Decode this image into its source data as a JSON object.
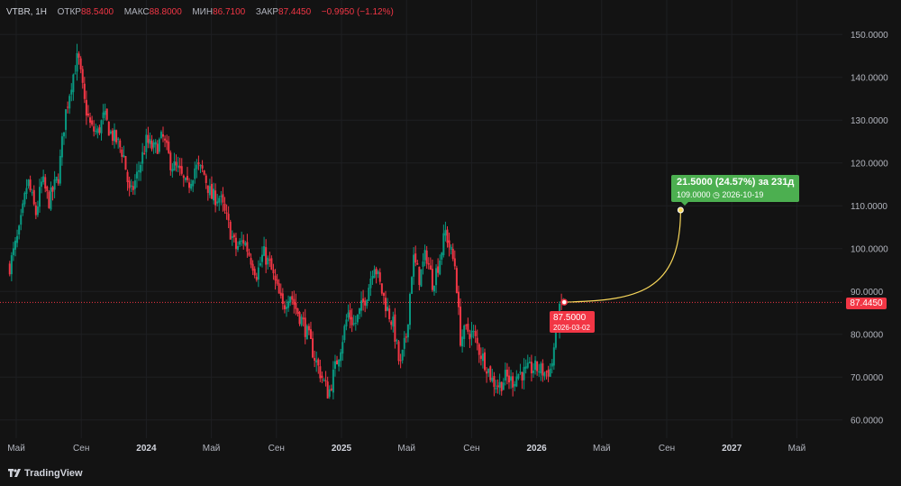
{
  "legend": {
    "symbol": "VTBR, 1H",
    "open_label": "ОТКР",
    "open": "88.5400",
    "high_label": "МАКС",
    "high": "88.8000",
    "low_label": "МИН",
    "low": "86.7100",
    "close_label": "ЗАКР",
    "close": "87.4450",
    "change": "−0.9950 (−1.12%)"
  },
  "current_price_tag": "87.4450",
  "projection": {
    "from_price": "87.5000",
    "from_date": "2026-03-02",
    "main": "21.5000 (24.57%) за 231д",
    "sub": "109.0000 ◷ 2026-10-19",
    "to_price": 109.0
  },
  "branding": {
    "logo_text": "TradingView"
  },
  "colors": {
    "up": "#089981",
    "down": "#f23645",
    "projection": "#4caf50",
    "curve": "#f7d65a",
    "background": "#131313"
  },
  "chart_data": {
    "type": "candlestick",
    "y_axis_ticks": [
      "150.0000",
      "140.0000",
      "130.0000",
      "120.0000",
      "110.0000",
      "100.0000",
      "90.0000",
      "80.0000",
      "70.0000",
      "60.0000"
    ],
    "ylim": [
      57,
      153
    ],
    "x_axis_ticks": [
      {
        "label": "Май",
        "t": 0.0
      },
      {
        "label": "Сен",
        "t": 4.0
      },
      {
        "label": "2024",
        "t": 8.0
      },
      {
        "label": "Май",
        "t": 12.0
      },
      {
        "label": "Сен",
        "t": 16.0
      },
      {
        "label": "2025",
        "t": 20.0
      },
      {
        "label": "Май",
        "t": 24.0
      },
      {
        "label": "Сен",
        "t": 28.0
      },
      {
        "label": "2026",
        "t": 32.0
      },
      {
        "label": "Май",
        "t": 36.0
      },
      {
        "label": "Сен",
        "t": 40.0
      },
      {
        "label": "2027",
        "t": 44.0
      },
      {
        "label": "Май",
        "t": 48.0
      }
    ],
    "bold_ticks": [
      "2024",
      "2025",
      "2026",
      "2027"
    ],
    "current_price": 87.445,
    "price_path": [
      [
        -0.4,
        96
      ],
      [
        0.2,
        104
      ],
      [
        0.7,
        116
      ],
      [
        1.2,
        108
      ],
      [
        1.6,
        116
      ],
      [
        2.0,
        111
      ],
      [
        2.6,
        117
      ],
      [
        3.0,
        131
      ],
      [
        3.4,
        139
      ],
      [
        3.8,
        145
      ],
      [
        4.2,
        134
      ],
      [
        4.6,
        128
      ],
      [
        5.0,
        127
      ],
      [
        5.4,
        131
      ],
      [
        5.8,
        127
      ],
      [
        6.2,
        125
      ],
      [
        6.6,
        122
      ],
      [
        7.0,
        112
      ],
      [
        7.5,
        118
      ],
      [
        8.0,
        125
      ],
      [
        8.5,
        123
      ],
      [
        9.0,
        126
      ],
      [
        9.5,
        120
      ],
      [
        10.0,
        118
      ],
      [
        10.5,
        114
      ],
      [
        11.0,
        119
      ],
      [
        11.5,
        118
      ],
      [
        12.0,
        112
      ],
      [
        12.5,
        112
      ],
      [
        13.0,
        106
      ],
      [
        13.5,
        100
      ],
      [
        14.0,
        102
      ],
      [
        14.4,
        98
      ],
      [
        14.8,
        94
      ],
      [
        15.2,
        99
      ],
      [
        15.6,
        96
      ],
      [
        16.0,
        91
      ],
      [
        16.4,
        86
      ],
      [
        16.8,
        90
      ],
      [
        17.2,
        86
      ],
      [
        17.6,
        83
      ],
      [
        18.0,
        79
      ],
      [
        18.4,
        74
      ],
      [
        18.8,
        70
      ],
      [
        19.2,
        66
      ],
      [
        19.6,
        72
      ],
      [
        20.0,
        78
      ],
      [
        20.4,
        85
      ],
      [
        20.8,
        82
      ],
      [
        21.2,
        86
      ],
      [
        21.6,
        90
      ],
      [
        22.0,
        97
      ],
      [
        22.4,
        91
      ],
      [
        22.8,
        86
      ],
      [
        23.2,
        82
      ],
      [
        23.6,
        72
      ],
      [
        24.0,
        80
      ],
      [
        24.4,
        98
      ],
      [
        24.8,
        93
      ],
      [
        25.2,
        99
      ],
      [
        25.6,
        92
      ],
      [
        26.0,
        97
      ],
      [
        26.4,
        104
      ],
      [
        26.8,
        98
      ],
      [
        27.0,
        96
      ],
      [
        27.3,
        79
      ],
      [
        27.7,
        81
      ],
      [
        28.1,
        80
      ],
      [
        28.5,
        76
      ],
      [
        28.9,
        73
      ],
      [
        29.3,
        69
      ],
      [
        29.7,
        68
      ],
      [
        30.1,
        70
      ],
      [
        30.5,
        69
      ],
      [
        30.9,
        71
      ],
      [
        31.3,
        71
      ],
      [
        31.7,
        72
      ],
      [
        32.1,
        72
      ],
      [
        32.5,
        71
      ],
      [
        32.9,
        72
      ],
      [
        33.2,
        81
      ],
      [
        33.5,
        87
      ],
      [
        33.7,
        88
      ]
    ],
    "projection_curve": {
      "from": [
        33.7,
        87.5
      ],
      "to": [
        40.85,
        109.0
      ]
    }
  }
}
